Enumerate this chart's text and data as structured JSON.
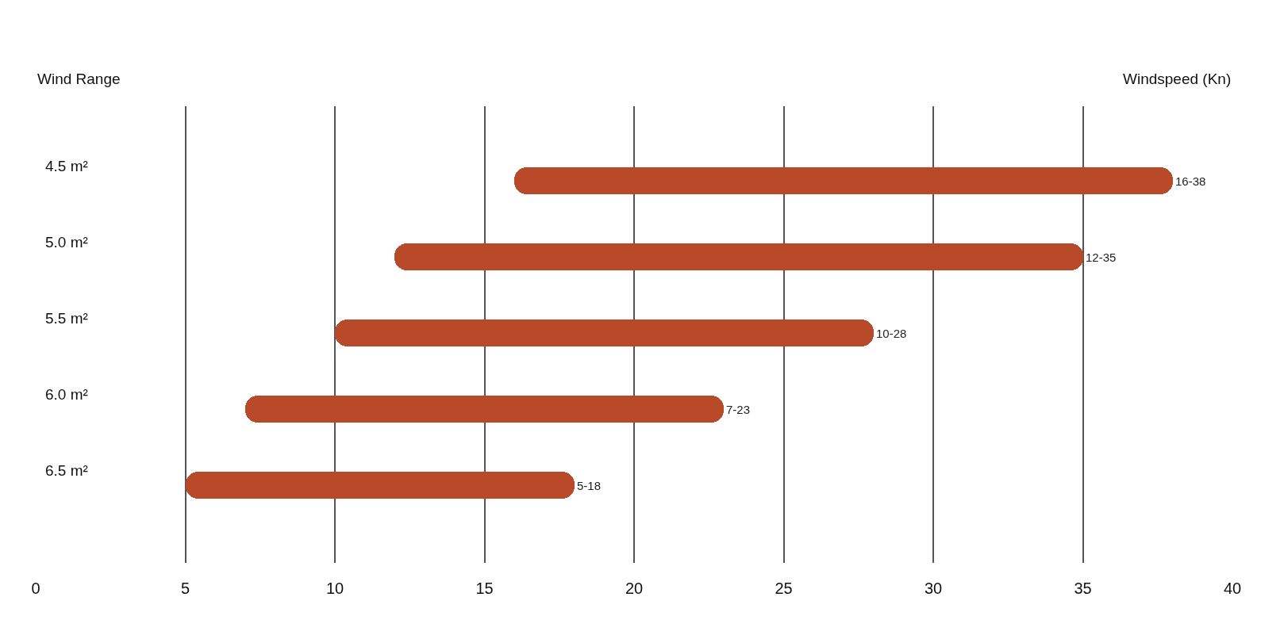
{
  "chart_data": {
    "type": "bar",
    "orientation": "horizontal",
    "xlabel": "Windspeed (Kn)",
    "ylabel": "Wind Range",
    "categories": [
      "4.5 m²",
      "5.0 m²",
      "5.5 m²",
      "6.0 m²",
      "6.5 m²"
    ],
    "base": [
      16,
      12,
      10,
      7,
      5
    ],
    "values": [
      22,
      23,
      18,
      16,
      13
    ],
    "value_labels": [
      "16-38",
      "12-35",
      "10-28",
      "7-23",
      "5-18"
    ],
    "color": "#b84a2a",
    "xlim": [
      0,
      40
    ],
    "xticks": [
      0,
      5,
      10,
      15,
      20,
      25,
      30,
      35,
      40
    ],
    "grid": "x"
  }
}
